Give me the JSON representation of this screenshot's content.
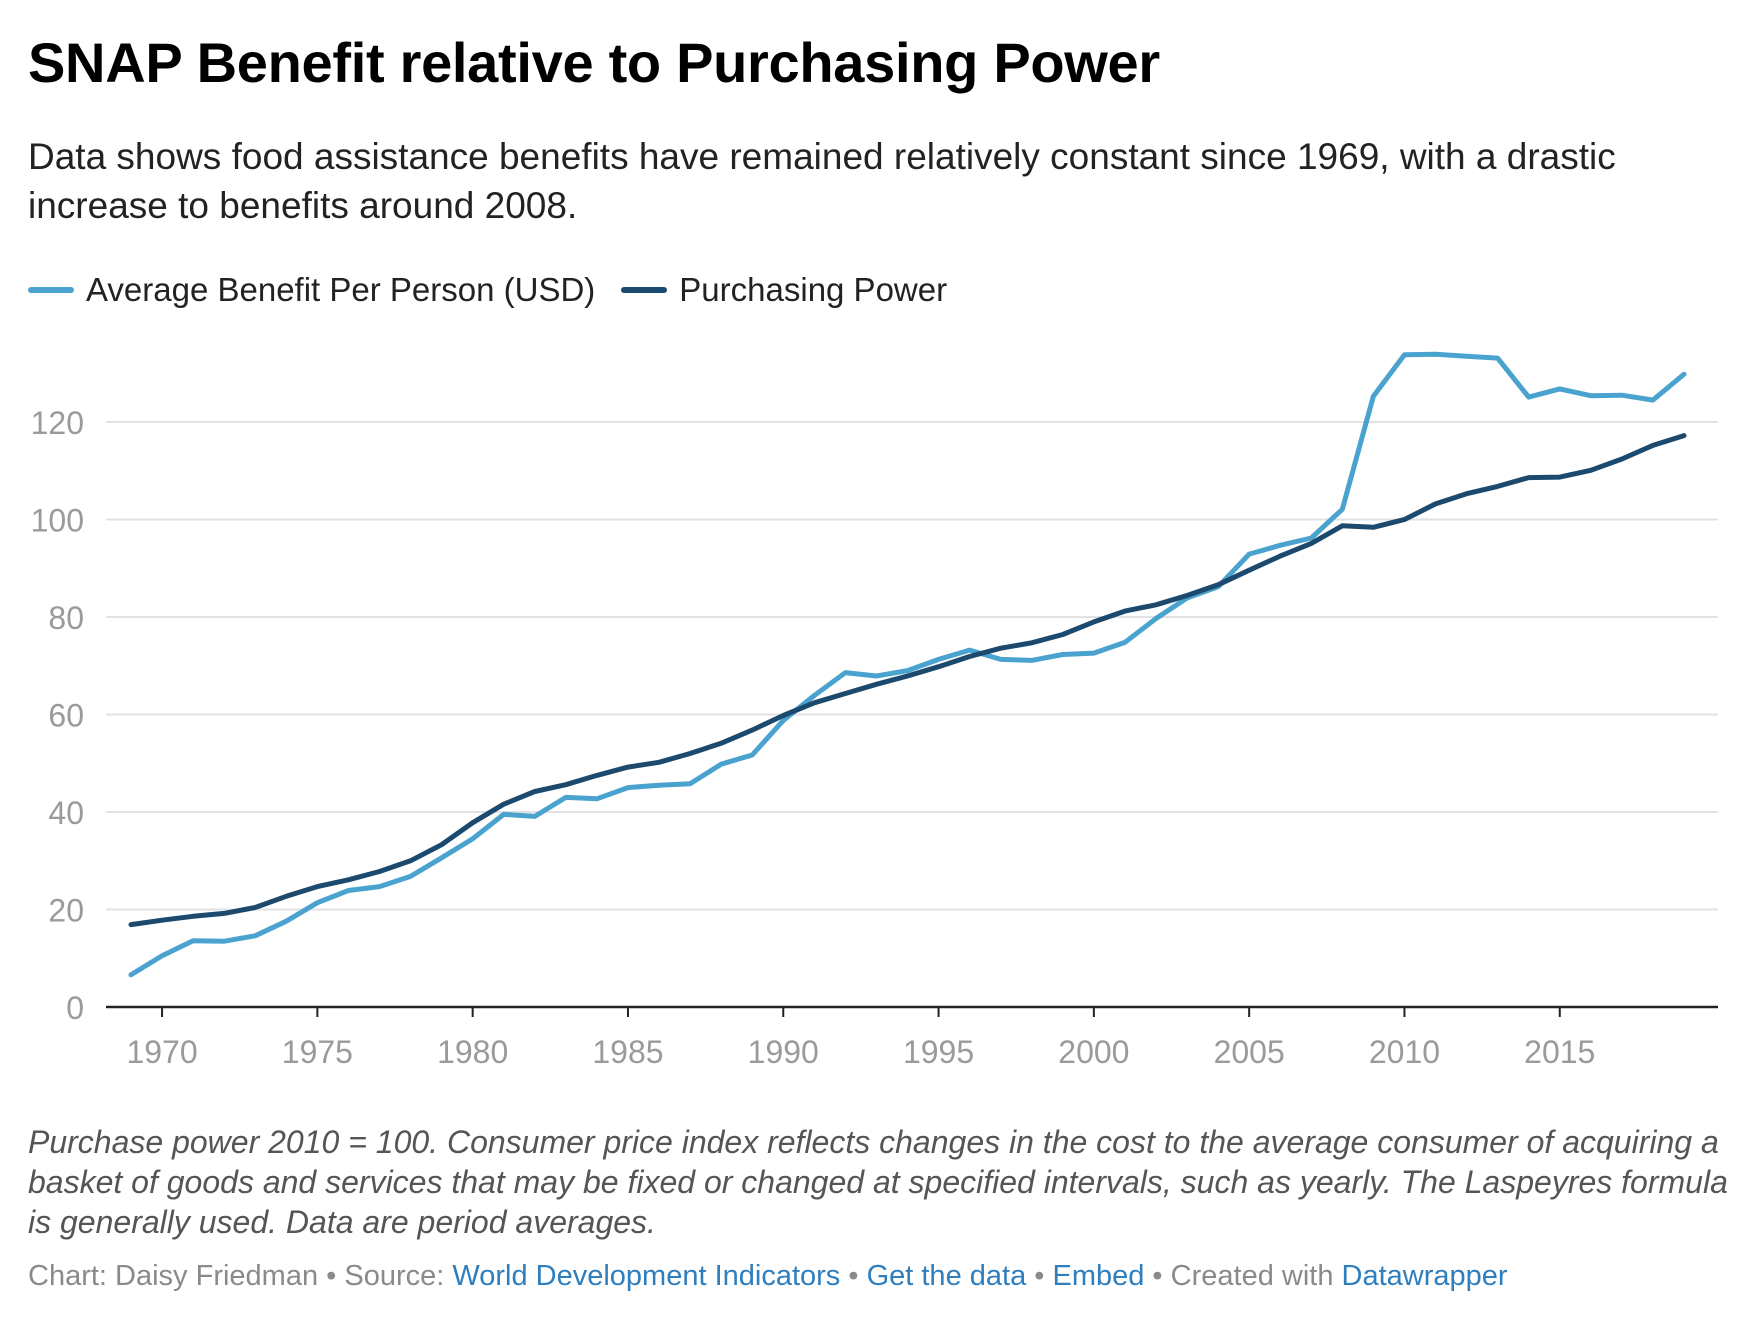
{
  "title": "SNAP Benefit relative to Purchasing Power",
  "subtitle": "Data shows food assistance benefits have remained relatively constant since 1969, with a drastic increase to benefits around 2008.",
  "notes": "Purchase power 2010 = 100. Consumer price index reflects changes in the cost to the average consumer of acquiring a basket of goods and services that may be fixed or changed at specified intervals, such as yearly. The Laspeyres formula is generally used. Data are period averages.",
  "footer": {
    "chart_label": "Chart: Daisy Friedman",
    "separator": " • ",
    "source_label": "Source: ",
    "source_link": "World Development Indicators",
    "get_data": "Get the data",
    "embed": "Embed",
    "created_with": "Created with ",
    "tool_link": "Datawrapper"
  },
  "colors": {
    "benefit": "#4aa3cf",
    "purchasing_power": "#1c4a6e",
    "grid": "#e2e2e2",
    "axis": "#222222",
    "tick_text": "#9a9a9a"
  },
  "chart_data": {
    "type": "line",
    "title": "SNAP Benefit relative to Purchasing Power",
    "xlabel": "",
    "ylabel": "",
    "xlim": [
      1969,
      2019
    ],
    "ylim": [
      0,
      130
    ],
    "x_ticks": [
      1970,
      1975,
      1980,
      1985,
      1990,
      1995,
      2000,
      2005,
      2010,
      2015
    ],
    "y_ticks": [
      0,
      20,
      40,
      60,
      80,
      100,
      120
    ],
    "grid": true,
    "legend_position": "top-left",
    "x": [
      1969,
      1970,
      1971,
      1972,
      1973,
      1974,
      1975,
      1976,
      1977,
      1978,
      1979,
      1980,
      1981,
      1982,
      1983,
      1984,
      1985,
      1986,
      1987,
      1988,
      1989,
      1990,
      1991,
      1992,
      1993,
      1994,
      1995,
      1996,
      1997,
      1998,
      1999,
      2000,
      2001,
      2002,
      2003,
      2004,
      2005,
      2006,
      2007,
      2008,
      2009,
      2010,
      2011,
      2012,
      2013,
      2014,
      2015,
      2016,
      2017,
      2018,
      2019
    ],
    "series": [
      {
        "name": "Average Benefit Per Person (USD)",
        "color": "#4aa3cf",
        "values": [
          6.6,
          10.5,
          13.6,
          13.5,
          14.6,
          17.6,
          21.4,
          23.9,
          24.7,
          26.8,
          30.6,
          34.5,
          39.5,
          39.1,
          43.0,
          42.7,
          45.0,
          45.5,
          45.8,
          49.8,
          51.7,
          58.8,
          63.9,
          68.6,
          67.9,
          69.0,
          71.3,
          73.2,
          71.3,
          71.1,
          72.3,
          72.6,
          74.8,
          79.7,
          83.9,
          86.2,
          92.9,
          94.7,
          96.2,
          102.1,
          125.3,
          133.8,
          133.9,
          133.5,
          133.1,
          125.1,
          126.8,
          125.4,
          125.5,
          124.5,
          129.8
        ]
      },
      {
        "name": "Purchasing Power",
        "color": "#1c4a6e",
        "values": [
          16.9,
          17.8,
          18.6,
          19.2,
          20.4,
          22.7,
          24.7,
          26.1,
          27.8,
          30.0,
          33.3,
          37.8,
          41.6,
          44.2,
          45.6,
          47.5,
          49.2,
          50.2,
          52.0,
          54.1,
          56.8,
          59.8,
          62.4,
          64.3,
          66.2,
          67.9,
          69.8,
          71.9,
          73.6,
          74.7,
          76.4,
          79.0,
          81.2,
          82.5,
          84.4,
          86.6,
          89.6,
          92.5,
          95.1,
          98.7,
          98.4,
          100.0,
          103.2,
          105.3,
          106.8,
          108.6,
          108.7,
          110.1,
          112.4,
          115.2,
          117.2
        ]
      }
    ]
  }
}
